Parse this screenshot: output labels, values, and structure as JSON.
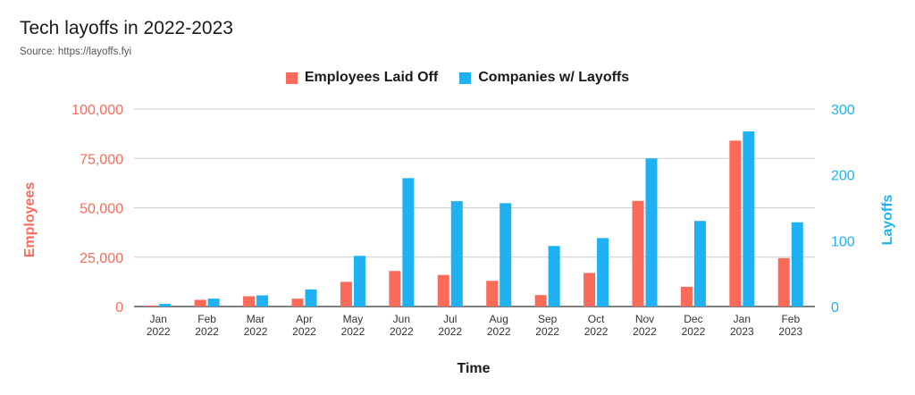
{
  "header": {
    "title": "Tech layoffs in 2022-2023",
    "subtitle": "Source: https://layoffs.fyi"
  },
  "colors": {
    "employees": "#fb6b5a",
    "companies": "#1fb2f2",
    "grid": "#cccccc",
    "axis": "#333333"
  },
  "chart_data": {
    "type": "bar",
    "title": "Tech layoffs in 2022-2023",
    "subtitle": "Source: https://layoffs.fyi",
    "xlabel": "Time",
    "ylabel_left": "Employees",
    "ylabel_right": "Layoffs",
    "categories": [
      [
        "Jan",
        "2022"
      ],
      [
        "Feb",
        "2022"
      ],
      [
        "Mar",
        "2022"
      ],
      [
        "Apr",
        "2022"
      ],
      [
        "May",
        "2022"
      ],
      [
        "Jun",
        "2022"
      ],
      [
        "Jul",
        "2022"
      ],
      [
        "Aug",
        "2022"
      ],
      [
        "Sep",
        "2022"
      ],
      [
        "Oct",
        "2022"
      ],
      [
        "Nov",
        "2022"
      ],
      [
        "Dec",
        "2022"
      ],
      [
        "Jan",
        "2023"
      ],
      [
        "Feb",
        "2023"
      ]
    ],
    "series": [
      {
        "name": "Employees Laid Off",
        "axis": "left",
        "color": "#fb6b5a",
        "values": [
          500,
          3400,
          5200,
          4000,
          12500,
          18000,
          16000,
          13000,
          5800,
          17000,
          53500,
          10000,
          84000,
          24500
        ]
      },
      {
        "name": "Companies w/ Layoffs",
        "axis": "right",
        "color": "#1fb2f2",
        "values": [
          4,
          12,
          17,
          26,
          77,
          195,
          160,
          157,
          92,
          104,
          225,
          130,
          266,
          128
        ]
      }
    ],
    "ylim_left": [
      0,
      100000
    ],
    "yticks_left": [
      "0",
      "25,000",
      "50,000",
      "75,000",
      "100,000"
    ],
    "ylim_right": [
      0,
      300
    ],
    "yticks_right": [
      "0",
      "100",
      "200",
      "300"
    ],
    "grid": true,
    "legend_position": "top-center"
  }
}
